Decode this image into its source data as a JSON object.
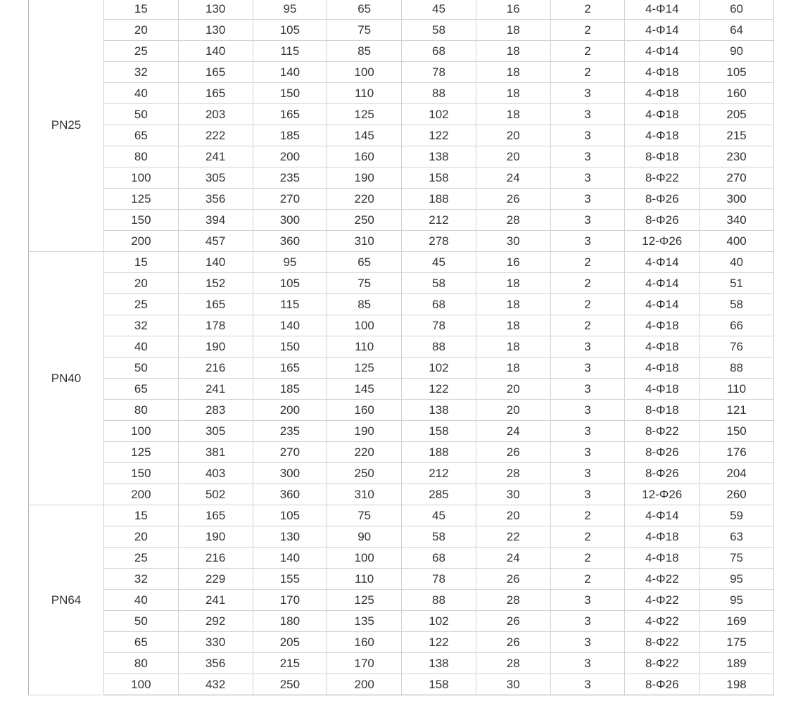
{
  "colors": {
    "background": "#ffffff",
    "grid_border": "#d2d2d2",
    "section_border": "#ababab",
    "text": "#333333"
  },
  "table": {
    "columns_visible": 10,
    "sections": [
      {
        "label": "PN25",
        "rows": [
          [
            "15",
            "130",
            "95",
            "65",
            "45",
            "16",
            "2",
            "4-Φ14",
            "60"
          ],
          [
            "20",
            "130",
            "105",
            "75",
            "58",
            "18",
            "2",
            "4-Φ14",
            "64"
          ],
          [
            "25",
            "140",
            "115",
            "85",
            "68",
            "18",
            "2",
            "4-Φ14",
            "90"
          ],
          [
            "32",
            "165",
            "140",
            "100",
            "78",
            "18",
            "2",
            "4-Φ18",
            "105"
          ],
          [
            "40",
            "165",
            "150",
            "110",
            "88",
            "18",
            "3",
            "4-Φ18",
            "160"
          ],
          [
            "50",
            "203",
            "165",
            "125",
            "102",
            "18",
            "3",
            "4-Φ18",
            "205"
          ],
          [
            "65",
            "222",
            "185",
            "145",
            "122",
            "20",
            "3",
            "4-Φ18",
            "215"
          ],
          [
            "80",
            "241",
            "200",
            "160",
            "138",
            "20",
            "3",
            "8-Φ18",
            "230"
          ],
          [
            "100",
            "305",
            "235",
            "190",
            "158",
            "24",
            "3",
            "8-Φ22",
            "270"
          ],
          [
            "125",
            "356",
            "270",
            "220",
            "188",
            "26",
            "3",
            "8-Φ26",
            "300"
          ],
          [
            "150",
            "394",
            "300",
            "250",
            "212",
            "28",
            "3",
            "8-Φ26",
            "340"
          ],
          [
            "200",
            "457",
            "360",
            "310",
            "278",
            "30",
            "3",
            "12-Φ26",
            "400"
          ]
        ]
      },
      {
        "label": "PN40",
        "rows": [
          [
            "15",
            "140",
            "95",
            "65",
            "45",
            "16",
            "2",
            "4-Φ14",
            "40"
          ],
          [
            "20",
            "152",
            "105",
            "75",
            "58",
            "18",
            "2",
            "4-Φ14",
            "51"
          ],
          [
            "25",
            "165",
            "115",
            "85",
            "68",
            "18",
            "2",
            "4-Φ14",
            "58"
          ],
          [
            "32",
            "178",
            "140",
            "100",
            "78",
            "18",
            "2",
            "4-Φ18",
            "66"
          ],
          [
            "40",
            "190",
            "150",
            "110",
            "88",
            "18",
            "3",
            "4-Φ18",
            "76"
          ],
          [
            "50",
            "216",
            "165",
            "125",
            "102",
            "18",
            "3",
            "4-Φ18",
            "88"
          ],
          [
            "65",
            "241",
            "185",
            "145",
            "122",
            "20",
            "3",
            "4-Φ18",
            "110"
          ],
          [
            "80",
            "283",
            "200",
            "160",
            "138",
            "20",
            "3",
            "8-Φ18",
            "121"
          ],
          [
            "100",
            "305",
            "235",
            "190",
            "158",
            "24",
            "3",
            "8-Φ22",
            "150"
          ],
          [
            "125",
            "381",
            "270",
            "220",
            "188",
            "26",
            "3",
            "8-Φ26",
            "176"
          ],
          [
            "150",
            "403",
            "300",
            "250",
            "212",
            "28",
            "3",
            "8-Φ26",
            "204"
          ],
          [
            "200",
            "502",
            "360",
            "310",
            "285",
            "30",
            "3",
            "12-Φ26",
            "260"
          ]
        ]
      },
      {
        "label": "PN64",
        "rows": [
          [
            "15",
            "165",
            "105",
            "75",
            "45",
            "20",
            "2",
            "4-Φ14",
            "59"
          ],
          [
            "20",
            "190",
            "130",
            "90",
            "58",
            "22",
            "2",
            "4-Φ18",
            "63"
          ],
          [
            "25",
            "216",
            "140",
            "100",
            "68",
            "24",
            "2",
            "4-Φ18",
            "75"
          ],
          [
            "32",
            "229",
            "155",
            "110",
            "78",
            "26",
            "2",
            "4-Φ22",
            "95"
          ],
          [
            "40",
            "241",
            "170",
            "125",
            "88",
            "28",
            "3",
            "4-Φ22",
            "95"
          ],
          [
            "50",
            "292",
            "180",
            "135",
            "102",
            "26",
            "3",
            "4-Φ22",
            "169"
          ],
          [
            "65",
            "330",
            "205",
            "160",
            "122",
            "26",
            "3",
            "8-Φ22",
            "175"
          ],
          [
            "80",
            "356",
            "215",
            "170",
            "138",
            "28",
            "3",
            "8-Φ22",
            "189"
          ],
          [
            "100",
            "432",
            "250",
            "200",
            "158",
            "30",
            "3",
            "8-Φ26",
            "198"
          ]
        ]
      }
    ]
  }
}
